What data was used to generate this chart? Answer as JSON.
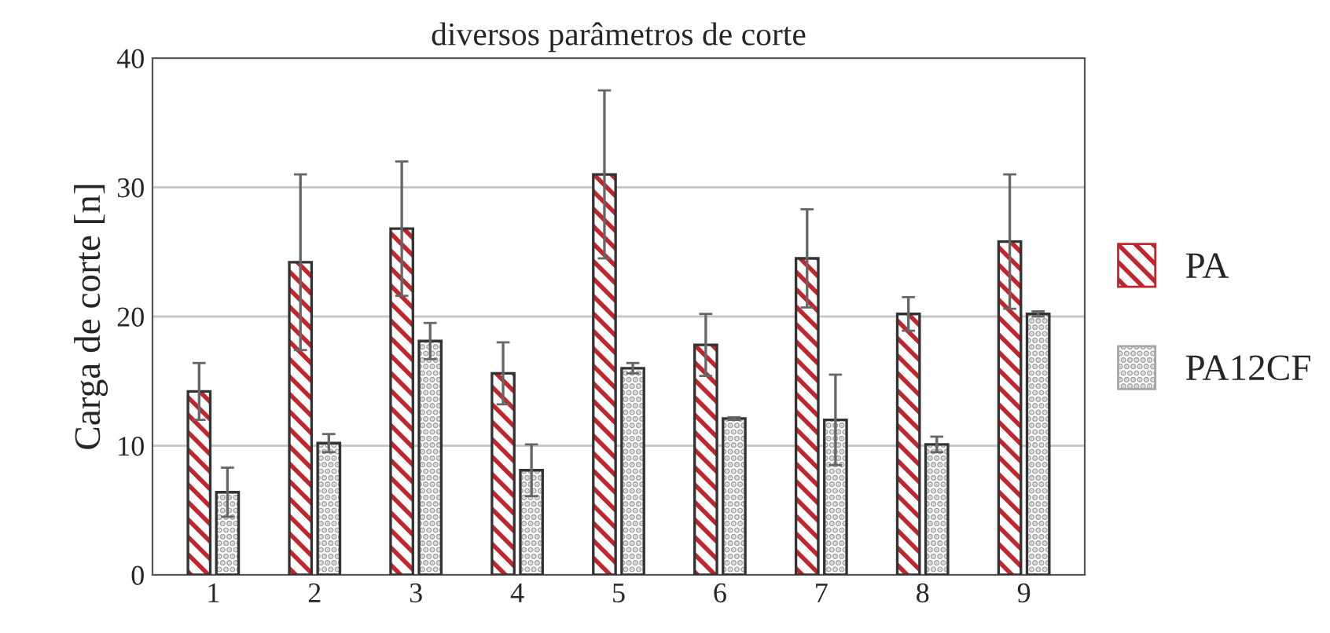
{
  "chart_data": {
    "type": "bar",
    "title": "diversos parâmetros de corte",
    "ylabel": "Carga de corte [n]",
    "categories": [
      "1",
      "2",
      "3",
      "4",
      "5",
      "6",
      "7",
      "8",
      "9"
    ],
    "series": [
      {
        "name": "PA",
        "color": "#c0262d",
        "values": [
          14.2,
          24.2,
          26.8,
          15.6,
          31,
          17.8,
          24.5,
          20.2,
          25.8
        ],
        "errors": [
          2.2,
          6.8,
          5.2,
          2.4,
          6.5,
          2.4,
          3.8,
          1.3,
          5.2
        ]
      },
      {
        "name": "PA12CF",
        "color": "#a6a6a6",
        "values": [
          6.4,
          10.2,
          18.1,
          8.1,
          16,
          12.1,
          12,
          10.1,
          20.2
        ],
        "errors": [
          1.9,
          0.7,
          1.4,
          2.0,
          0.4,
          0.1,
          3.5,
          0.6,
          0.2
        ]
      }
    ],
    "ylim": [
      0,
      40
    ],
    "yticks": [
      0,
      10,
      20,
      30,
      40
    ],
    "grid": "y",
    "legend": "right"
  }
}
